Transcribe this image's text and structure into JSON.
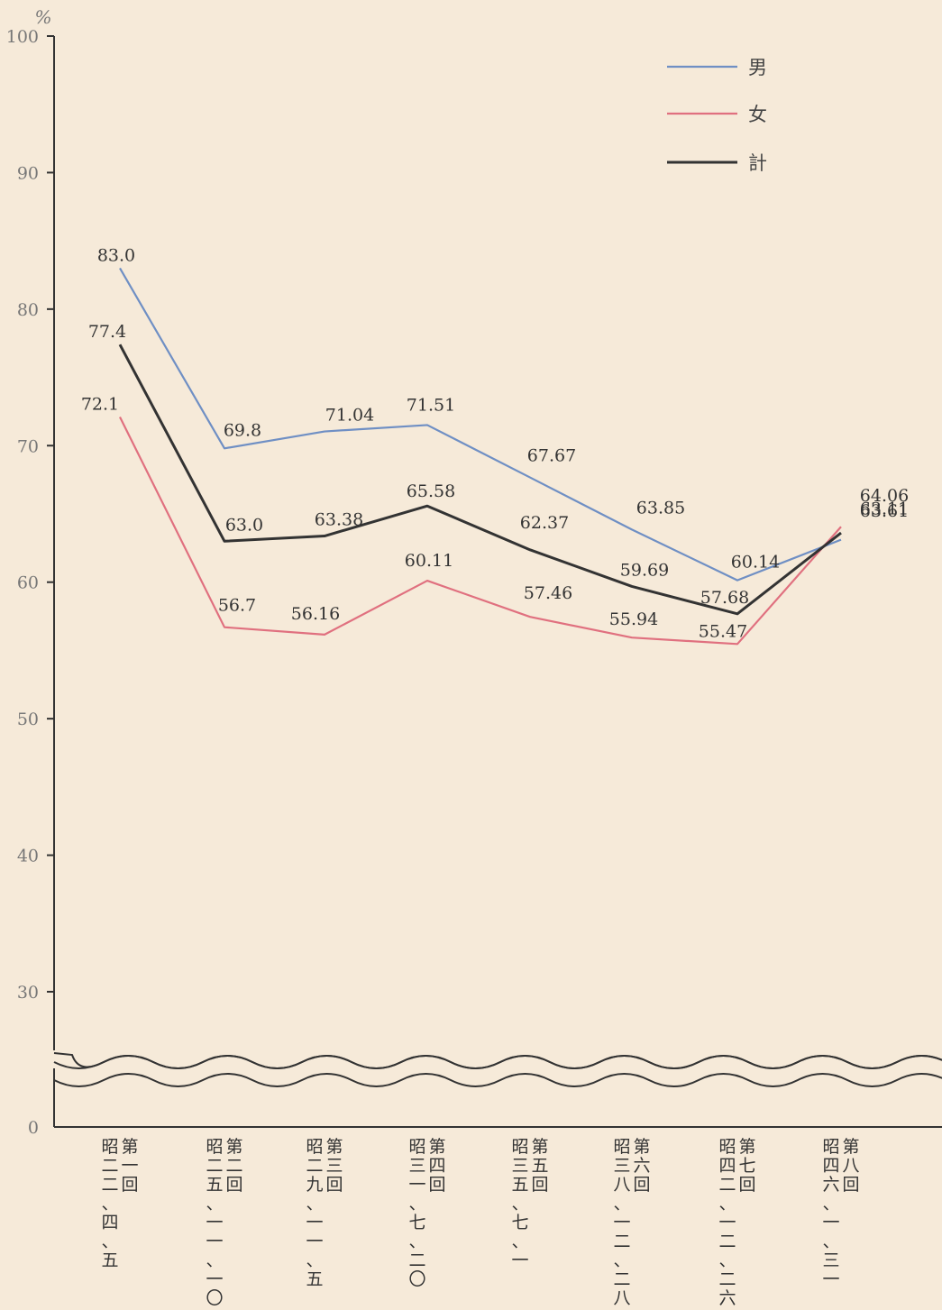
{
  "chart_data": {
    "type": "line",
    "ylabel": "%",
    "ylim": [
      0,
      100
    ],
    "y_axis_break": [
      25,
      30
    ],
    "y_ticks": [
      "0",
      "30",
      "40",
      "50",
      "60",
      "70",
      "80",
      "90",
      "100"
    ],
    "categories": [
      "第一回 昭二二、四、五",
      "第二回 昭二五、一一、一〇",
      "第三回 昭二九、一一、五",
      "第四回 昭三一、七、二〇",
      "第五回 昭三五、七、一",
      "第六回 昭三八、一二、二八",
      "第七回 昭四二、一二、二六",
      "第八回 昭四六、一、三一"
    ],
    "category_columns": [
      [
        [
          "昭",
          "二",
          "二",
          "、",
          "四",
          "、",
          "五"
        ],
        [
          "第",
          "一",
          "回"
        ]
      ],
      [
        [
          "昭",
          "二",
          "五",
          "、",
          "一",
          "一",
          "、",
          "一",
          "〇"
        ],
        [
          "第",
          "二",
          "回"
        ]
      ],
      [
        [
          "昭",
          "二",
          "九",
          "、",
          "一",
          "一",
          "、",
          "五"
        ],
        [
          "第",
          "三",
          "回"
        ]
      ],
      [
        [
          "昭",
          "三",
          "一",
          "、",
          "七",
          "、",
          "二",
          "〇"
        ],
        [
          "第",
          "四",
          "回"
        ]
      ],
      [
        [
          "昭",
          "三",
          "五",
          "、",
          "七",
          "、",
          "一"
        ],
        [
          "第",
          "五",
          "回"
        ]
      ],
      [
        [
          "昭",
          "三",
          "八",
          "、",
          "一",
          "二",
          "、",
          "二",
          "八"
        ],
        [
          "第",
          "六",
          "回"
        ]
      ],
      [
        [
          "昭",
          "四",
          "二",
          "、",
          "一",
          "二",
          "、",
          "二",
          "六"
        ],
        [
          "第",
          "七",
          "回"
        ]
      ],
      [
        [
          "昭",
          "四",
          "六",
          "、",
          "一",
          "、",
          "三",
          "一"
        ],
        [
          "第",
          "八",
          "回"
        ]
      ]
    ],
    "series": [
      {
        "name": "男",
        "color": "#6f8fc4",
        "values": [
          83.0,
          69.8,
          71.04,
          71.51,
          67.67,
          63.85,
          60.14,
          63.11
        ],
        "labels": [
          "83.0",
          "69.8",
          "71.04",
          "71.51",
          "67.67",
          "63.85",
          "60.14",
          "63.11"
        ]
      },
      {
        "name": "女",
        "color": "#e0707f",
        "values": [
          72.1,
          56.7,
          56.16,
          60.11,
          57.46,
          55.94,
          55.47,
          64.06
        ],
        "labels": [
          "72.1",
          "56.7",
          "56.16",
          "60.11",
          "57.46",
          "55.94",
          "55.47",
          "64.06"
        ]
      },
      {
        "name": "計",
        "color": "#333333",
        "values": [
          77.4,
          63.0,
          63.38,
          65.58,
          62.37,
          59.69,
          57.68,
          63.61
        ],
        "labels": [
          "77.4",
          "63.0",
          "63.38",
          "65.58",
          "62.37",
          "59.69",
          "57.68",
          "63.61"
        ]
      }
    ],
    "legend": {
      "position": "top-right"
    },
    "grid": false
  }
}
